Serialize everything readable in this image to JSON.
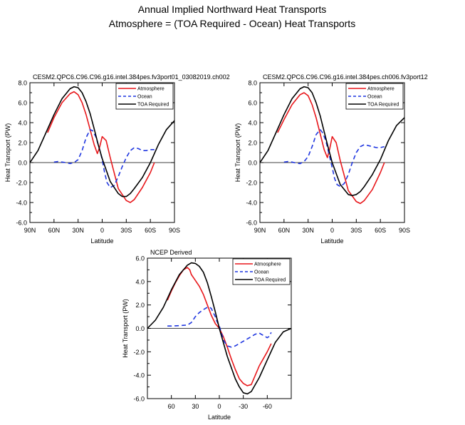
{
  "figure": {
    "title_line1": "Annual Implied Northward Heat Transports",
    "title_line2": "Atmosphere = (TOA Required - Ocean) Heat Transports"
  },
  "series_styles": {
    "Atmosphere": {
      "color": "#e8171b",
      "dash": ""
    },
    "Ocean": {
      "color": "#1f36e0",
      "dash": "6,4"
    },
    "TOA Required": {
      "color": "#000000",
      "dash": ""
    }
  },
  "chart_data": [
    {
      "id": "panel-1",
      "type": "line",
      "title": "CESM2.QPC6.C96.C96.g16.intel.384pes.fv3port01_03082019.ch002",
      "xlabel": "Latitude",
      "ylabel": "Heat Transport (PW)",
      "xlim": [
        90,
        -90
      ],
      "ylim": [
        -6,
        8
      ],
      "xticks": [
        90,
        60,
        30,
        0,
        -30,
        -60,
        -90
      ],
      "xtick_labels": [
        "90N",
        "60N",
        "30N",
        "0",
        "30S",
        "60S",
        "90S"
      ],
      "yticks": [
        -6,
        -4,
        -2,
        0,
        2,
        4,
        6,
        8
      ],
      "ytick_labels": [
        "-6.0",
        "-4.0",
        "-2.0",
        "0.0",
        "2.0",
        "4.0",
        "6.0",
        "8.0"
      ],
      "zero_line": true,
      "legend_position": "top-right",
      "series": [
        {
          "name": "Atmosphere",
          "x": [
            68,
            60,
            50,
            40,
            35,
            30,
            25,
            20,
            15,
            10,
            6,
            3,
            0,
            -5,
            -10,
            -20,
            -30,
            -35,
            -40,
            -50,
            -60,
            -65
          ],
          "y": [
            3.0,
            4.5,
            6.0,
            6.9,
            7.1,
            6.8,
            6.0,
            4.8,
            3.3,
            1.8,
            0.9,
            1.6,
            2.6,
            2.2,
            0.5,
            -2.6,
            -3.8,
            -4.0,
            -3.7,
            -2.5,
            -1.0,
            0.0
          ]
        },
        {
          "name": "Ocean",
          "x": [
            60,
            55,
            50,
            45,
            40,
            35,
            30,
            25,
            20,
            15,
            12,
            8,
            5,
            2,
            0,
            -3,
            -6,
            -10,
            -15,
            -20,
            -25,
            -30,
            -35,
            -40,
            -45,
            -50,
            -55,
            -60,
            -65
          ],
          "y": [
            0.05,
            0.1,
            0.05,
            0.0,
            -0.1,
            0.0,
            0.3,
            1.2,
            2.5,
            3.3,
            3.2,
            2.6,
            1.8,
            1.0,
            0.3,
            -1.0,
            -2.0,
            -2.5,
            -2.3,
            -1.4,
            -0.4,
            0.5,
            1.2,
            1.5,
            1.4,
            1.2,
            1.2,
            1.3,
            1.3
          ]
        },
        {
          "name": "TOA Required",
          "x": [
            90,
            80,
            70,
            60,
            50,
            40,
            35,
            30,
            25,
            20,
            15,
            10,
            5,
            0,
            -10,
            -20,
            -25,
            -30,
            -35,
            -40,
            -50,
            -60,
            -70,
            -80,
            -90
          ],
          "y": [
            0.0,
            1.2,
            3.0,
            4.8,
            6.4,
            7.4,
            7.6,
            7.5,
            7.0,
            6.1,
            4.9,
            3.4,
            1.8,
            0.4,
            -1.9,
            -3.1,
            -3.4,
            -3.4,
            -3.1,
            -2.6,
            -1.5,
            0.0,
            1.8,
            3.3,
            4.2
          ]
        }
      ]
    },
    {
      "id": "panel-2",
      "type": "line",
      "title": "CESM2.QPC6.C96.C96.g16.intel.384pes.ch006.fv3port12",
      "xlabel": "Latitude",
      "ylabel": "Heat Transport (PW)",
      "xlim": [
        90,
        -90
      ],
      "ylim": [
        -6,
        8
      ],
      "xticks": [
        90,
        60,
        30,
        0,
        -30,
        -60,
        -90
      ],
      "xtick_labels": [
        "90N",
        "60N",
        "30N",
        "0",
        "30S",
        "60S",
        "90S"
      ],
      "yticks": [
        -6,
        -4,
        -2,
        0,
        2,
        4,
        6,
        8
      ],
      "ytick_labels": [
        "-6.0",
        "-4.0",
        "-2.0",
        "0.0",
        "2.0",
        "4.0",
        "6.0",
        "8.0"
      ],
      "zero_line": true,
      "legend_position": "top-right",
      "series": [
        {
          "name": "Atmosphere",
          "x": [
            68,
            60,
            50,
            40,
            35,
            30,
            25,
            20,
            15,
            10,
            6,
            3,
            0,
            -5,
            -10,
            -20,
            -30,
            -35,
            -40,
            -50,
            -60,
            -65
          ],
          "y": [
            3.0,
            4.3,
            5.8,
            6.8,
            7.0,
            6.7,
            5.8,
            4.5,
            2.9,
            1.3,
            0.5,
            1.4,
            2.6,
            2.0,
            0.2,
            -2.8,
            -3.9,
            -4.1,
            -3.8,
            -2.7,
            -1.0,
            0.0
          ]
        },
        {
          "name": "Ocean",
          "x": [
            60,
            55,
            50,
            45,
            40,
            35,
            30,
            25,
            20,
            15,
            12,
            8,
            5,
            2,
            0,
            -3,
            -6,
            -10,
            -15,
            -20,
            -25,
            -30,
            -35,
            -40,
            -45,
            -50,
            -55,
            -60,
            -65
          ],
          "y": [
            0.05,
            0.1,
            0.05,
            -0.05,
            -0.1,
            0.1,
            0.6,
            1.6,
            2.8,
            3.3,
            3.0,
            2.2,
            1.2,
            0.2,
            -0.5,
            -1.6,
            -2.2,
            -2.4,
            -2.1,
            -1.2,
            0.0,
            1.0,
            1.6,
            1.8,
            1.7,
            1.6,
            1.5,
            1.5,
            1.6
          ]
        },
        {
          "name": "TOA Required",
          "x": [
            90,
            80,
            70,
            60,
            50,
            40,
            35,
            30,
            25,
            20,
            15,
            10,
            5,
            0,
            -10,
            -20,
            -25,
            -30,
            -35,
            -40,
            -50,
            -60,
            -70,
            -80,
            -90
          ],
          "y": [
            0.0,
            1.2,
            3.0,
            4.8,
            6.4,
            7.4,
            7.6,
            7.5,
            7.0,
            6.0,
            4.7,
            3.1,
            1.5,
            0.0,
            -2.2,
            -3.2,
            -3.3,
            -3.2,
            -2.9,
            -2.4,
            -1.2,
            0.3,
            2.2,
            3.7,
            4.5
          ]
        }
      ]
    },
    {
      "id": "panel-3",
      "type": "line",
      "title": "NCEP Derived",
      "xlabel": "Latitude",
      "ylabel": "Heat Transport (PW)",
      "xlim": [
        90,
        -90
      ],
      "ylim": [
        -6,
        6
      ],
      "xticks": [
        60,
        30,
        0,
        -30,
        -60
      ],
      "xtick_labels": [
        "60",
        "30",
        "0",
        "-30",
        "-60"
      ],
      "yticks": [
        -6,
        -4,
        -2,
        0,
        2,
        4,
        6
      ],
      "ytick_labels": [
        "-6.0",
        "-4.0",
        "-2.0",
        "0.0",
        "2.0",
        "4.0",
        "6.0"
      ],
      "zero_line": true,
      "legend_position": "top-right",
      "series": [
        {
          "name": "Atmosphere",
          "x": [
            65,
            60,
            55,
            50,
            45,
            40,
            37,
            35,
            32,
            30,
            25,
            20,
            15,
            10,
            5,
            0,
            -5,
            -10,
            -15,
            -20,
            -25,
            -30,
            -35,
            -40,
            -45,
            -50,
            -55,
            -60,
            -65
          ],
          "y": [
            2.4,
            3.2,
            3.9,
            4.5,
            5.0,
            5.2,
            5.0,
            4.6,
            4.3,
            4.1,
            3.6,
            2.9,
            2.0,
            1.1,
            0.4,
            0.0,
            -0.7,
            -1.6,
            -2.6,
            -3.5,
            -4.3,
            -4.7,
            -4.9,
            -4.8,
            -4.0,
            -3.2,
            -2.6,
            -2.0,
            -1.3
          ]
        },
        {
          "name": "Ocean",
          "x": [
            65,
            60,
            55,
            50,
            45,
            40,
            35,
            30,
            25,
            20,
            15,
            12,
            10,
            8,
            5,
            3,
            0,
            -3,
            -6,
            -10,
            -15,
            -20,
            -25,
            -30,
            -35,
            -40,
            -45,
            -50,
            -55,
            -60,
            -62,
            -65
          ],
          "y": [
            0.2,
            0.2,
            0.22,
            0.24,
            0.26,
            0.28,
            0.5,
            1.0,
            1.35,
            1.6,
            1.8,
            1.8,
            1.7,
            1.4,
            1.0,
            0.6,
            0.2,
            -0.5,
            -1.1,
            -1.5,
            -1.6,
            -1.5,
            -1.3,
            -1.1,
            -0.9,
            -0.7,
            -0.5,
            -0.4,
            -0.6,
            -0.8,
            -0.7,
            -0.35
          ]
        },
        {
          "name": "TOA Required",
          "x": [
            90,
            80,
            70,
            60,
            50,
            40,
            35,
            30,
            25,
            20,
            15,
            10,
            5,
            0,
            -10,
            -20,
            -25,
            -30,
            -35,
            -40,
            -50,
            -60,
            -70,
            -80,
            -90
          ],
          "y": [
            0.0,
            0.7,
            1.8,
            3.3,
            4.6,
            5.4,
            5.6,
            5.55,
            5.3,
            4.8,
            3.9,
            2.7,
            1.4,
            0.0,
            -2.4,
            -4.3,
            -5.0,
            -5.5,
            -5.6,
            -5.4,
            -4.2,
            -2.7,
            -1.2,
            -0.3,
            0.0
          ]
        }
      ]
    }
  ]
}
